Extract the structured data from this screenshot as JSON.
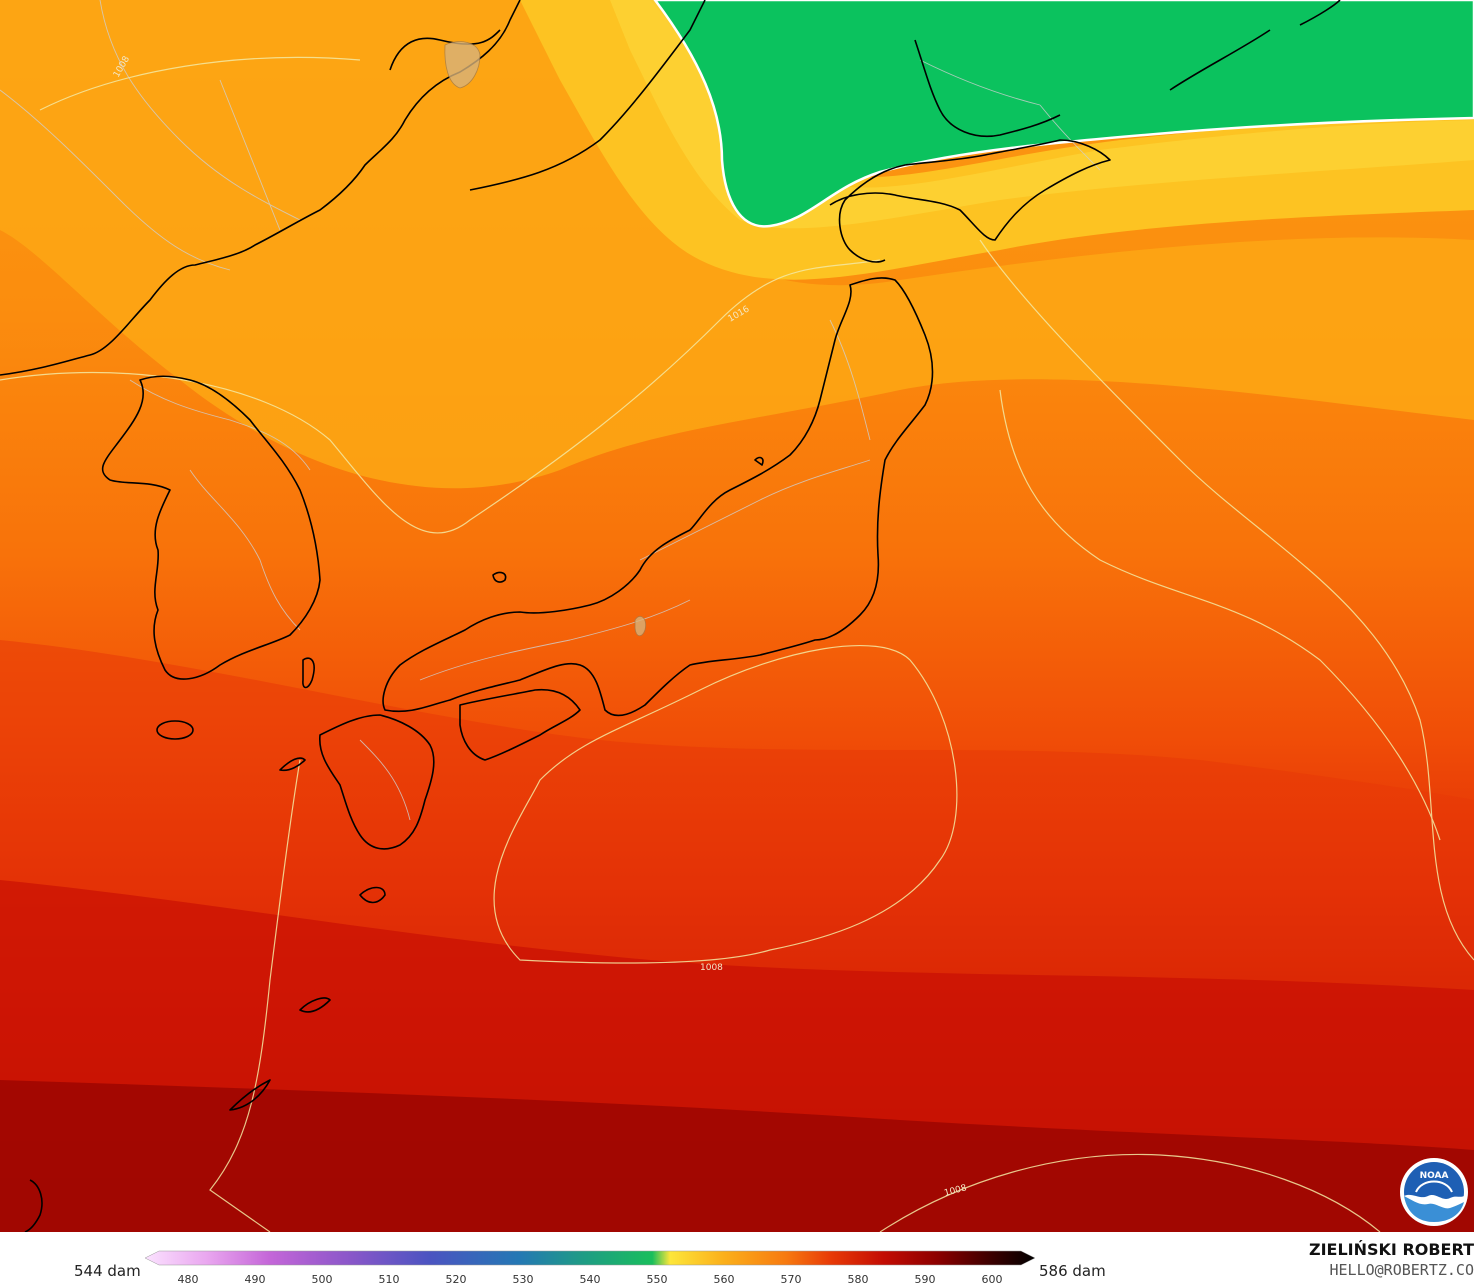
{
  "map": {
    "contour_labels": [
      "1008",
      "1016",
      "1008",
      "1008"
    ],
    "logo_text": "NOAA",
    "colors": {
      "green_zone": "#0bc25e",
      "yellow_band": "#fdcb22",
      "orange": "#fb8a0d",
      "red": "#de1a08",
      "dark_red": "#9c0000",
      "coastline": "#000000",
      "borders": "#c8c8c8",
      "isobar": "#f3e9a3"
    }
  },
  "legend": {
    "min_label": "544 dam",
    "max_label": "586 dam",
    "ticks": [
      "480",
      "490",
      "500",
      "510",
      "520",
      "530",
      "540",
      "550",
      "560",
      "570",
      "580",
      "590",
      "600"
    ],
    "gradient_colors": [
      "#fbe2ff",
      "#e9a6ef",
      "#c466d8",
      "#8a57c9",
      "#4b54c1",
      "#2478b4",
      "#1f9b86",
      "#19be5c",
      "#fde63a",
      "#fbb01b",
      "#f77a10",
      "#e83b07",
      "#c30c03",
      "#8c0000",
      "#3c0000",
      "#000000"
    ]
  },
  "credits": {
    "author": "ZIELIŃSKI ROBERT",
    "email": "HELLO@ROBERTZ.CO"
  }
}
